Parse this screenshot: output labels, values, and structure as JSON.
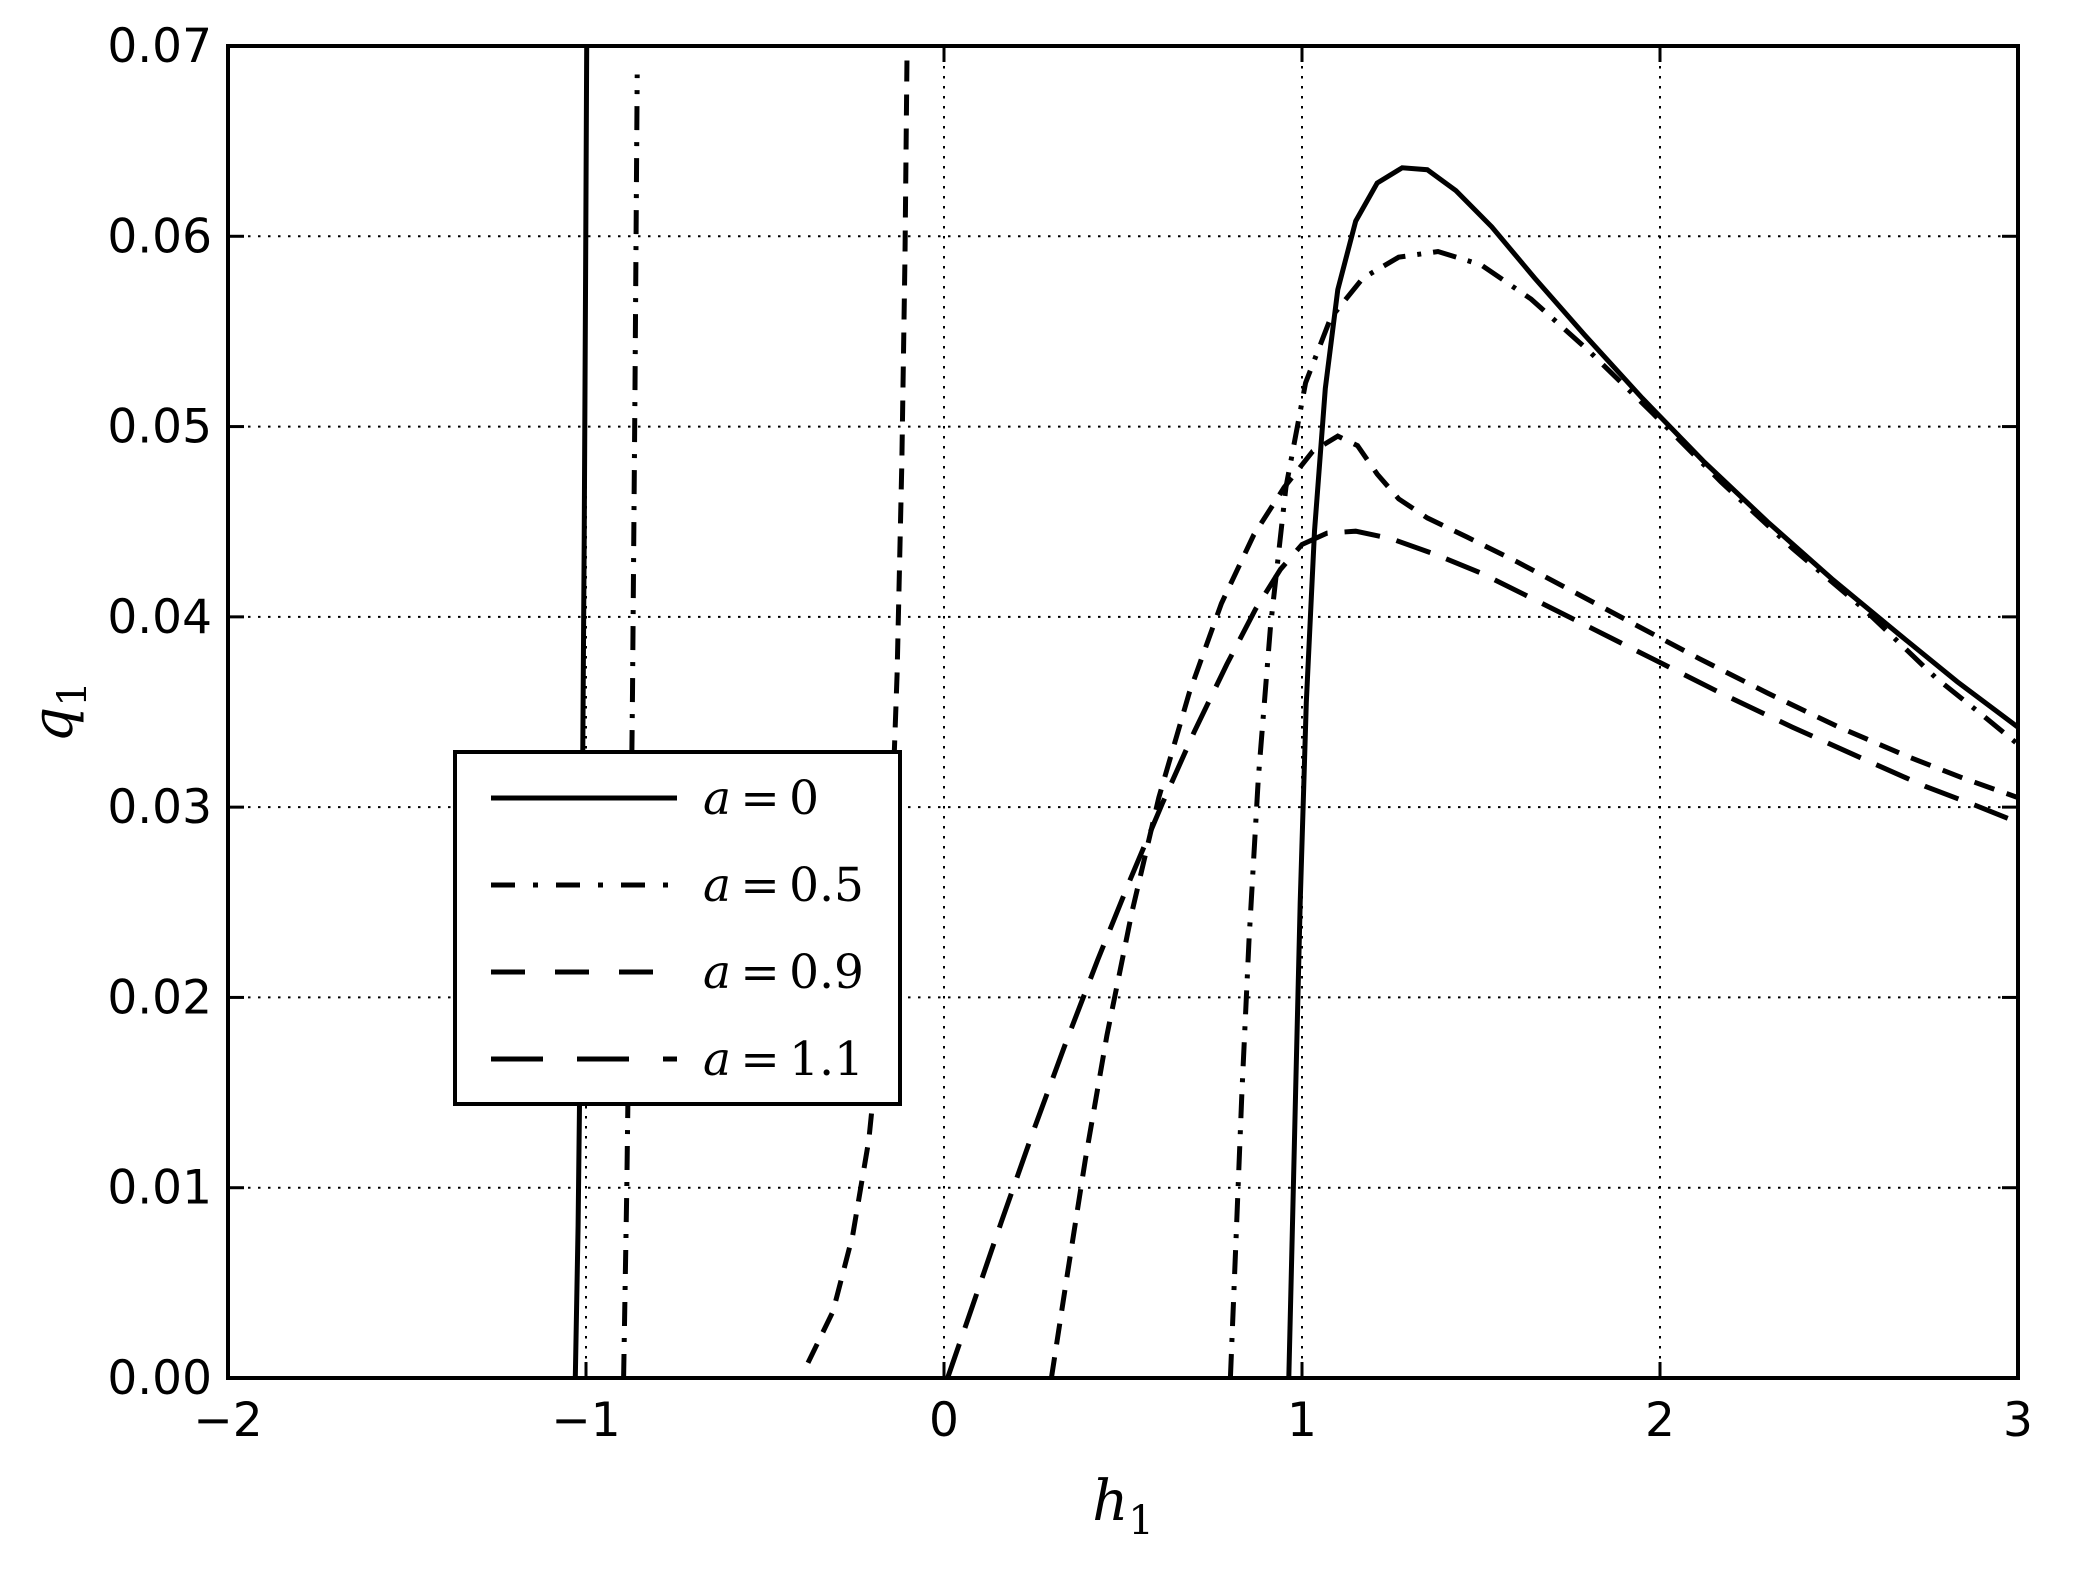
{
  "figure": {
    "background": "#ffffff",
    "line_color": "#000000"
  },
  "chart_data": {
    "type": "line",
    "title": "",
    "xlabel": {
      "base": "h",
      "sub": "1"
    },
    "ylabel": {
      "base": "q",
      "sub": "1"
    },
    "xlim": [
      -2,
      3
    ],
    "ylim": [
      0,
      0.07
    ],
    "xticks": [
      -2,
      -1,
      0,
      1,
      2,
      3
    ],
    "xtick_labels": [
      "−2",
      "−1",
      "0",
      "1",
      "2",
      "3"
    ],
    "yticks": [
      0,
      0.01,
      0.02,
      0.03,
      0.04,
      0.05,
      0.06,
      0.07
    ],
    "ytick_labels": [
      "0.00",
      "0.01",
      "0.02",
      "0.03",
      "0.04",
      "0.05",
      "0.06",
      "0.07"
    ],
    "grid": {
      "visible": true,
      "style": "dotted",
      "color": "#000000"
    },
    "legend": {
      "position": "center left",
      "entries": [
        {
          "var": "a",
          "eq": "=",
          "value": "0",
          "style": "solid"
        },
        {
          "var": "a",
          "eq": "=",
          "value": "0.5",
          "style": "dashdot"
        },
        {
          "var": "a",
          "eq": "=",
          "value": "0.9",
          "style": "dashed"
        },
        {
          "var": "a",
          "eq": "=",
          "value": "1.1",
          "style": "longdash"
        }
      ]
    },
    "series": [
      {
        "name": "a = 0",
        "style": "solid",
        "segments": [
          [
            [
              -1.03,
              0
            ],
            [
              -1.022,
              0.008
            ],
            [
              -1.016,
              0.018
            ],
            [
              -1.01,
              0.03
            ],
            [
              -1.005,
              0.044
            ],
            [
              -1.001,
              0.058
            ],
            [
              -0.998,
              0.07
            ]
          ],
          [
            [
              0.963,
              0
            ],
            [
              0.972,
              0.007
            ],
            [
              0.982,
              0.015
            ],
            [
              0.995,
              0.025
            ],
            [
              1.012,
              0.0355
            ],
            [
              1.035,
              0.0445
            ],
            [
              1.065,
              0.052
            ],
            [
              1.1,
              0.0572
            ],
            [
              1.15,
              0.0608
            ],
            [
              1.21,
              0.0628
            ],
            [
              1.28,
              0.0636
            ],
            [
              1.35,
              0.0635
            ],
            [
              1.43,
              0.0624
            ],
            [
              1.53,
              0.0605
            ],
            [
              1.65,
              0.0578
            ],
            [
              1.79,
              0.0548
            ],
            [
              1.95,
              0.0515
            ],
            [
              2.12,
              0.0482
            ],
            [
              2.3,
              0.045
            ],
            [
              2.48,
              0.042
            ],
            [
              2.66,
              0.0392
            ],
            [
              2.83,
              0.0366
            ],
            [
              3.0,
              0.0342
            ]
          ]
        ]
      },
      {
        "name": "a = 0.5",
        "style": "dashdot",
        "segments": [
          [
            [
              -0.895,
              0
            ],
            [
              -0.886,
              0.01
            ],
            [
              -0.878,
              0.022
            ],
            [
              -0.87,
              0.036
            ],
            [
              -0.863,
              0.052
            ],
            [
              -0.857,
              0.0685
            ]
          ],
          [
            [
              0.8,
              0
            ],
            [
              0.815,
              0.007
            ],
            [
              0.832,
              0.015
            ],
            [
              0.852,
              0.023
            ],
            [
              0.878,
              0.0315
            ],
            [
              0.912,
              0.0395
            ],
            [
              0.955,
              0.0468
            ],
            [
              1.01,
              0.0523
            ],
            [
              1.08,
              0.0557
            ],
            [
              1.17,
              0.0578
            ],
            [
              1.27,
              0.0589
            ],
            [
              1.38,
              0.0592
            ],
            [
              1.5,
              0.0585
            ],
            [
              1.64,
              0.0567
            ],
            [
              1.8,
              0.054
            ],
            [
              1.98,
              0.0507
            ],
            [
              2.17,
              0.0471
            ],
            [
              2.37,
              0.0436
            ],
            [
              2.57,
              0.0404
            ],
            [
              2.77,
              0.0368
            ],
            [
              2.89,
              0.035
            ],
            [
              3.0,
              0.0333
            ]
          ]
        ]
      },
      {
        "name": "a = 0.9",
        "style": "dashed",
        "segments": [
          [
            [
              -0.38,
              0.0008
            ],
            [
              -0.31,
              0.0035
            ],
            [
              -0.255,
              0.0075
            ],
            [
              -0.21,
              0.0125
            ],
            [
              -0.175,
              0.019
            ],
            [
              -0.15,
              0.027
            ],
            [
              -0.131,
              0.037
            ],
            [
              -0.118,
              0.048
            ],
            [
              -0.109,
              0.059
            ],
            [
              -0.103,
              0.07
            ]
          ],
          [
            [
              0.3,
              0
            ],
            [
              0.345,
              0.0055
            ],
            [
              0.395,
              0.0115
            ],
            [
              0.455,
              0.018
            ],
            [
              0.525,
              0.0245
            ],
            [
              0.6,
              0.0305
            ],
            [
              0.685,
              0.036
            ],
            [
              0.775,
              0.0407
            ],
            [
              0.865,
              0.0443
            ],
            [
              0.95,
              0.0468
            ],
            [
              1.03,
              0.0487
            ],
            [
              1.1,
              0.0495
            ],
            [
              1.155,
              0.049
            ],
            [
              1.21,
              0.0475
            ],
            [
              1.27,
              0.0462
            ],
            [
              1.35,
              0.0452
            ],
            [
              1.46,
              0.0442
            ],
            [
              1.6,
              0.0429
            ],
            [
              1.76,
              0.0413
            ],
            [
              1.93,
              0.0396
            ],
            [
              2.11,
              0.0378
            ],
            [
              2.3,
              0.036
            ],
            [
              2.5,
              0.0342
            ],
            [
              2.7,
              0.0326
            ],
            [
              2.85,
              0.0315
            ],
            [
              3.0,
              0.0305
            ]
          ]
        ]
      },
      {
        "name": "a = 1.1",
        "style": "longdash",
        "segments": [
          [
            [
              0.01,
              0
            ],
            [
              0.08,
              0.0038
            ],
            [
              0.16,
              0.0082
            ],
            [
              0.25,
              0.013
            ],
            [
              0.34,
              0.0176
            ],
            [
              0.43,
              0.022
            ],
            [
              0.52,
              0.0262
            ],
            [
              0.61,
              0.0302
            ],
            [
              0.7,
              0.034
            ],
            [
              0.79,
              0.0375
            ],
            [
              0.87,
              0.0404
            ],
            [
              0.94,
              0.0425
            ],
            [
              1.0,
              0.0438
            ],
            [
              1.07,
              0.0444
            ],
            [
              1.15,
              0.0445
            ],
            [
              1.25,
              0.0441
            ],
            [
              1.37,
              0.0433
            ],
            [
              1.5,
              0.0423
            ],
            [
              1.65,
              0.0409
            ],
            [
              1.82,
              0.0393
            ],
            [
              2.0,
              0.0376
            ],
            [
              2.18,
              0.0359
            ],
            [
              2.37,
              0.0342
            ],
            [
              2.56,
              0.0326
            ],
            [
              2.74,
              0.0311
            ],
            [
              2.88,
              0.0301
            ],
            [
              3.0,
              0.0292
            ]
          ]
        ]
      }
    ]
  }
}
